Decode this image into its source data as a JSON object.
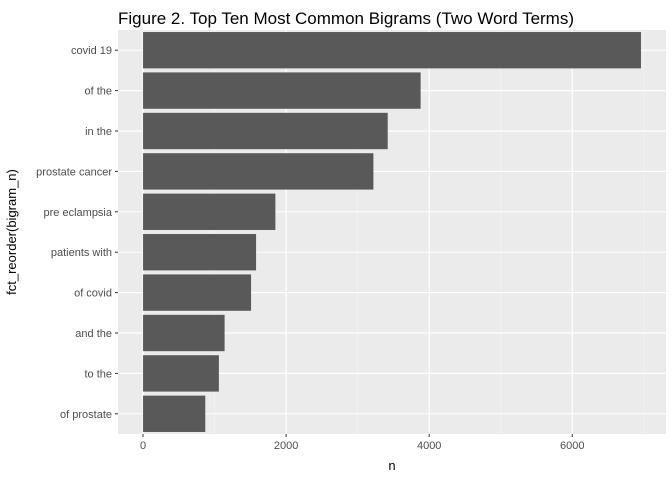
{
  "chart_data": {
    "type": "bar",
    "orientation": "horizontal",
    "title": "Figure 2. Top Ten Most Common Bigrams (Two Word Terms)",
    "xlabel": "n",
    "ylabel": "fct_reorder(bigram_n)",
    "categories": [
      "covid 19",
      "of the",
      "in the",
      "prostate cancer",
      "pre eclampsia",
      "patients with",
      "of covid",
      "and the",
      "to the",
      "of prostate"
    ],
    "values": [
      6960,
      3880,
      3420,
      3220,
      1850,
      1580,
      1510,
      1140,
      1060,
      870
    ],
    "xlim": [
      -350,
      7310
    ],
    "xticks": [
      0,
      2000,
      4000,
      6000
    ],
    "grid": true,
    "colors": {
      "bar": "#595959",
      "panel": "#ebebeb",
      "grid_major": "#ffffff",
      "grid_minor": "#f5f5f5"
    }
  }
}
